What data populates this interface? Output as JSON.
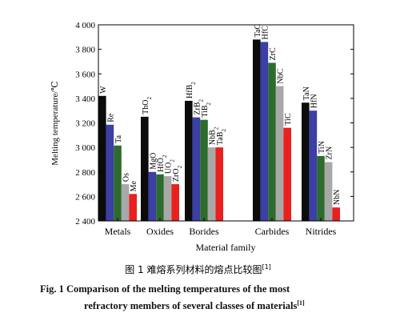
{
  "chart_data": {
    "type": "bar",
    "ylabel": "Melting temperature/℃",
    "xlabel": "Material family",
    "ylim": [
      2400,
      4000
    ],
    "yticks": [
      2400,
      2600,
      2800,
      3000,
      3200,
      3400,
      3600,
      3800,
      4000
    ],
    "ytick_labels": [
      "2 400",
      "2 600",
      "2 800",
      "3 000",
      "3 200",
      "3 400",
      "3 600",
      "3 800",
      "4 000"
    ],
    "grid": false,
    "bar_colors": [
      "#0b0b0b",
      "#3b3fa6",
      "#2e6b2e",
      "#a8a8a8",
      "#e8201e"
    ],
    "groups": [
      {
        "category": "Metals",
        "bars": [
          {
            "label": "W",
            "value": 3420
          },
          {
            "label": "Re",
            "value": 3185
          },
          {
            "label": "Ta",
            "value": 3015
          },
          {
            "label": "Os",
            "value": 2700
          },
          {
            "label": "Me",
            "value": 2620
          }
        ]
      },
      {
        "category": "Oxides",
        "bars": [
          {
            "label": "ThO2",
            "value": 3250
          },
          {
            "label": "MgO",
            "value": 2800
          },
          {
            "label": "HfO2",
            "value": 2780
          },
          {
            "label": "UO2",
            "value": 2765
          },
          {
            "label": "ZrO2",
            "value": 2700
          }
        ]
      },
      {
        "category": "Borides",
        "bars": [
          {
            "label": "HfB2",
            "value": 3380
          },
          {
            "label": "ZrB2",
            "value": 3245
          },
          {
            "label": "TiB2",
            "value": 3225
          },
          {
            "label": "NbB2",
            "value": 3000
          },
          {
            "label": "TaB2",
            "value": 3000
          }
        ]
      },
      {
        "category": "Carbides",
        "bars": [
          {
            "label": "TaC",
            "value": 3880
          },
          {
            "label": "HfC",
            "value": 3860
          },
          {
            "label": "ZrC",
            "value": 3690
          },
          {
            "label": "NbC",
            "value": 3500
          },
          {
            "label": "TiC",
            "value": 3160
          }
        ]
      },
      {
        "category": "Nitrides",
        "bars": [
          {
            "label": "TaN",
            "value": 3365
          },
          {
            "label": "HfN",
            "value": 3300
          },
          {
            "label": "TiN",
            "value": 2930
          },
          {
            "label": "ZrN",
            "value": 2880
          },
          {
            "label": "NbN",
            "value": 2510
          }
        ]
      }
    ]
  },
  "caption": {
    "zh": "图 1    难熔系列材料的熔点比较图",
    "zh_ref": "[1]",
    "en_line1": "Fig. 1    Comparison of the melting temperatures of the most",
    "en_line2": "refractory members of several classes of materials",
    "en_ref": "[1]"
  }
}
